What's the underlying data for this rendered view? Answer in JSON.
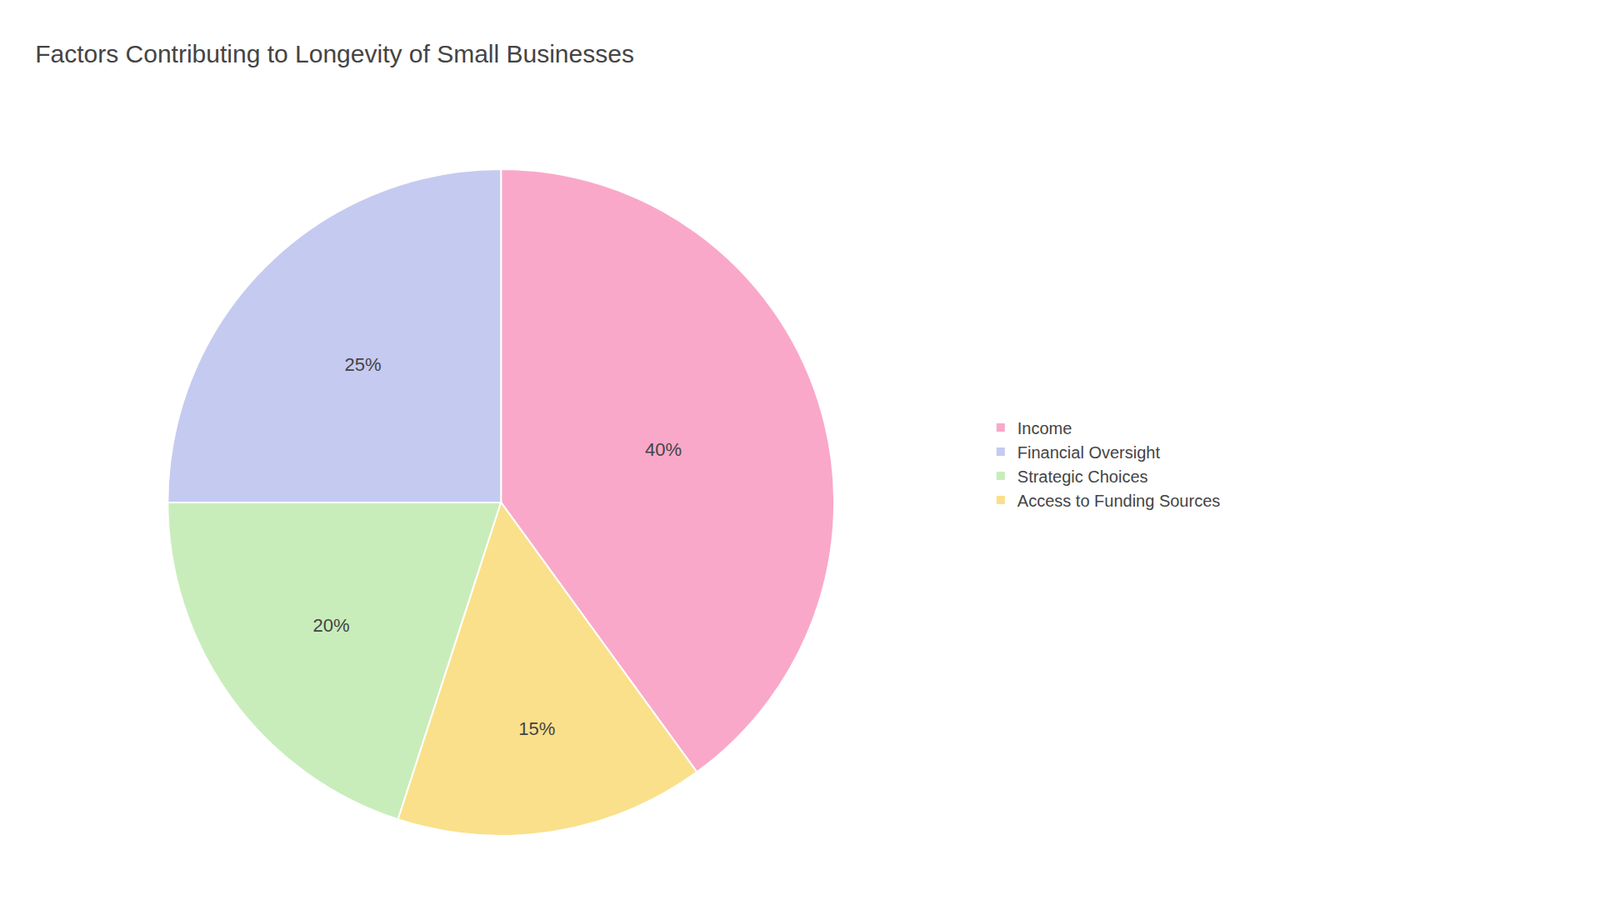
{
  "chart_data": {
    "type": "pie",
    "title": "Factors Contributing to Longevity of Small Businesses",
    "categories": [
      "Income",
      "Financial Oversight",
      "Strategic Choices",
      "Access to Funding Sources"
    ],
    "values": [
      40,
      25,
      20,
      15
    ],
    "value_labels": [
      "40%",
      "25%",
      "20%",
      "15%"
    ],
    "colors": [
      "#F9A8C9",
      "#C5CAF0",
      "#C8EDBB",
      "#FAE08A"
    ],
    "data_labels": true,
    "legend": "right"
  }
}
